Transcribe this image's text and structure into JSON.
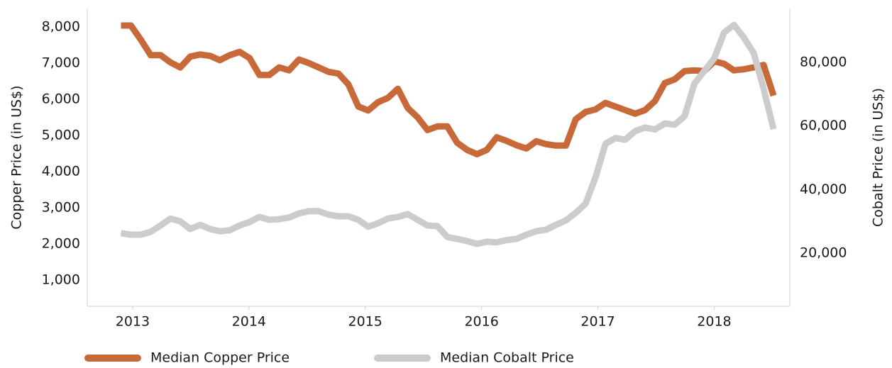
{
  "chart_data": {
    "type": "line",
    "x": [
      2012.9,
      2012.985,
      2013.07,
      2013.155,
      2013.24,
      2013.325,
      2013.41,
      2013.495,
      2013.58,
      2013.665,
      2013.75,
      2013.835,
      2013.92,
      2014.005,
      2014.09,
      2014.175,
      2014.26,
      2014.345,
      2014.43,
      2014.515,
      2014.6,
      2014.685,
      2014.77,
      2014.855,
      2014.94,
      2015.025,
      2015.11,
      2015.195,
      2015.28,
      2015.365,
      2015.45,
      2015.535,
      2015.62,
      2015.705,
      2015.79,
      2015.875,
      2015.96,
      2016.045,
      2016.13,
      2016.215,
      2016.3,
      2016.385,
      2016.47,
      2016.555,
      2016.64,
      2016.725,
      2016.81,
      2016.895,
      2016.98,
      2017.065,
      2017.15,
      2017.235,
      2017.32,
      2017.405,
      2017.49,
      2017.575,
      2017.66,
      2017.745,
      2017.83,
      2017.915,
      2018.0,
      2018.085,
      2018.17,
      2018.255,
      2018.34,
      2018.425,
      2018.51
    ],
    "series": [
      {
        "name": "Median Copper Price",
        "color": "#c8693a",
        "values": [
          8040,
          8040,
          7650,
          7220,
          7220,
          7020,
          6880,
          7180,
          7240,
          7200,
          7080,
          7220,
          7310,
          7140,
          6670,
          6670,
          6880,
          6800,
          7100,
          7000,
          6880,
          6760,
          6710,
          6410,
          5800,
          5690,
          5920,
          6040,
          6290,
          5760,
          5500,
          5150,
          5250,
          5250,
          4800,
          4600,
          4480,
          4600,
          4950,
          4850,
          4730,
          4640,
          4840,
          4760,
          4720,
          4720,
          5450,
          5650,
          5720,
          5900,
          5800,
          5700,
          5600,
          5700,
          5950,
          6450,
          6550,
          6780,
          6800,
          6780,
          7050,
          6980,
          6800,
          6830,
          6880,
          6950,
          6100
        ]
      },
      {
        "name": "Median Cobalt Price",
        "color": "#cccccc",
        "axis": "y2",
        "values": [
          26300,
          25800,
          25800,
          26700,
          28700,
          30900,
          30000,
          27600,
          28900,
          27600,
          26900,
          27200,
          28700,
          29800,
          31400,
          30500,
          30700,
          31200,
          32500,
          33200,
          33200,
          32100,
          31600,
          31600,
          30500,
          28300,
          29400,
          30900,
          31400,
          32300,
          30500,
          28700,
          28500,
          25100,
          24500,
          23800,
          22900,
          23600,
          23400,
          24100,
          24500,
          25800,
          26900,
          27400,
          28900,
          30300,
          32700,
          35600,
          43900,
          54400,
          56200,
          55700,
          58400,
          59500,
          58900,
          60800,
          60400,
          63100,
          73300,
          77300,
          81300,
          89400,
          91800,
          87800,
          82900,
          71700,
          59000
        ]
      }
    ],
    "y_label": "Copper Price (in US$)",
    "y2_label": "Cobalt Price (in US$)",
    "xlim": [
      2012.61,
      2018.65
    ],
    "xticks": [
      2013,
      2014,
      2015,
      2016,
      2017,
      2018
    ],
    "ylim": [
      275,
      8510
    ],
    "yticks": [
      {
        "value": 1000,
        "label": "1,000"
      },
      {
        "value": 2000,
        "label": "2,000"
      },
      {
        "value": 3000,
        "label": "3,000"
      },
      {
        "value": 4000,
        "label": "4,000"
      },
      {
        "value": 5000,
        "label": "5,000"
      },
      {
        "value": 6000,
        "label": "6,000"
      },
      {
        "value": 7000,
        "label": "7,000"
      },
      {
        "value": 8000,
        "label": "8,000"
      }
    ],
    "y2lim": [
      3280,
      96950
    ],
    "y2ticks": [
      {
        "value": 20000,
        "label": "20,000"
      },
      {
        "value": 40000,
        "label": "40,000"
      },
      {
        "value": 60000,
        "label": "60,000"
      },
      {
        "value": 80000,
        "label": "80,000"
      }
    ],
    "legend": "bottom"
  }
}
